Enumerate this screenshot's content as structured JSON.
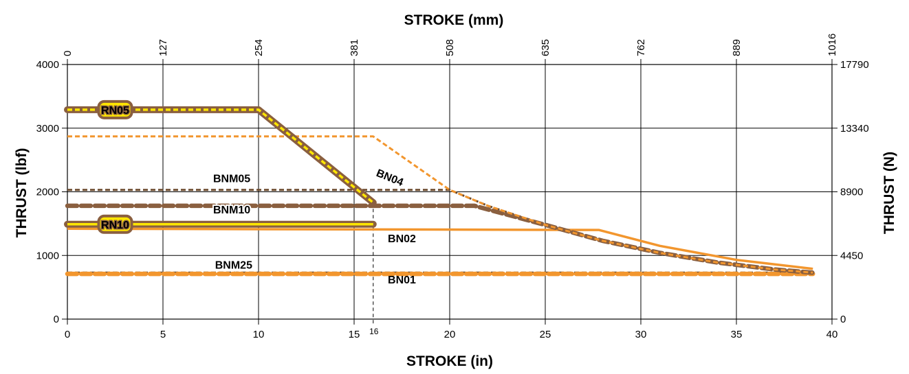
{
  "colors": {
    "brown": "#8a5f3f",
    "brown_dark": "#6b4a2e",
    "orange": "#f2962e",
    "yellow": "#ffe600",
    "grid": "#000000"
  },
  "chart_data": {
    "type": "line",
    "title_top": "STROKE (mm)",
    "xlabel": "STROKE (in)",
    "ylabel_left": "THRUST (lbf)",
    "ylabel_right": "THRUST (N)",
    "xlim": [
      0,
      40
    ],
    "ylim": [
      0,
      4000
    ],
    "x_ticks": [
      "0",
      "5",
      "10",
      "15",
      "20",
      "25",
      "30",
      "35",
      "40"
    ],
    "x_ticks_values": [
      0,
      5,
      10,
      15,
      20,
      25,
      30,
      35,
      40
    ],
    "x_extra_tick": {
      "value": 16,
      "label": "16"
    },
    "top_ticks": [
      "0",
      "127",
      "254",
      "381",
      "508",
      "635",
      "762",
      "889",
      "1016"
    ],
    "y_ticks": [
      "0",
      "1000",
      "2000",
      "3000",
      "4000"
    ],
    "y_ticks_values": [
      0,
      1000,
      2000,
      3000,
      4000
    ],
    "right_ticks": [
      "0",
      "4450",
      "8900",
      "13340",
      "17790"
    ],
    "grid": true,
    "series": [
      {
        "name": "BNM25",
        "style": "dash-thin",
        "color": "brown_dark",
        "x": [
          0,
          39
        ],
        "y": [
          730,
          730
        ],
        "label_at": [
          8.7,
          790
        ]
      },
      {
        "name": "BN01",
        "style": "dash-thick",
        "color": "orange",
        "x": [
          0,
          39
        ],
        "y": [
          710,
          710
        ],
        "label_at": [
          17.5,
          560
        ]
      },
      {
        "name": "BN02",
        "style": "solid",
        "color": "orange",
        "x": [
          0,
          27.8,
          31,
          35,
          39
        ],
        "y": [
          1420,
          1400,
          1150,
          930,
          790
        ],
        "label_at": [
          17.5,
          1210
        ]
      },
      {
        "name": "BNM05",
        "style": "dash-thin",
        "color": "brown_dark",
        "x": [
          0,
          20,
          22,
          25,
          28,
          31,
          34,
          37,
          39
        ],
        "y": [
          2030,
          2030,
          1780,
          1480,
          1230,
          1040,
          890,
          780,
          730
        ],
        "label_at": [
          8.6,
          2150
        ]
      },
      {
        "name": "BNM10",
        "style": "dash-thick",
        "color": "brown",
        "x": [
          0,
          21.3,
          25,
          28,
          31,
          34,
          37,
          39
        ],
        "y": [
          1780,
          1780,
          1480,
          1230,
          1040,
          890,
          780,
          730
        ],
        "label_at": [
          8.6,
          1660
        ]
      },
      {
        "name": "BN04",
        "style": "dash-thin",
        "color": "orange",
        "x": [
          0,
          16,
          20,
          22,
          25,
          28,
          31,
          34,
          37,
          39
        ],
        "y": [
          2870,
          2870,
          2030,
          1780,
          1480,
          1230,
          1040,
          890,
          780,
          730
        ],
        "label_at": [
          16.8,
          2170
        ]
      },
      {
        "name": "RN05",
        "style": "rn",
        "color": "brown",
        "x": [
          0,
          10,
          16
        ],
        "y": [
          3290,
          3290,
          1830
        ],
        "label_at": [
          2.5,
          3290
        ]
      },
      {
        "name": "RN10",
        "style": "rn",
        "color": "brown",
        "x": [
          0,
          16
        ],
        "y": [
          1490,
          1490
        ],
        "label_at": [
          2.5,
          1490
        ]
      }
    ]
  }
}
